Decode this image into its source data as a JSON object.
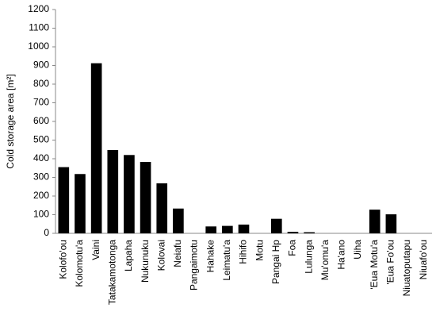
{
  "chart_data": {
    "type": "bar",
    "y_label": "Cold storage area [m²]",
    "categories": [
      "Kolofo'ou",
      "Kolomotu'a",
      "Vaini",
      "Tatakamotonga",
      "Lapaha",
      "Nukunuku",
      "Kolovai",
      "Neiafu",
      "Pangaimotu",
      "Hahake",
      "Leimatu'a",
      "Hihifo",
      "Motu",
      "Pangai Hp",
      "Foa",
      "Lulunga",
      "Mu'omu'a",
      "Ha'ano",
      "Uiha",
      "'Eua Motu'a",
      "'Eua Fo'ou",
      "Niuatoputapu",
      "Niuafo'ou"
    ],
    "values": [
      355,
      318,
      912,
      447,
      420,
      383,
      268,
      133,
      0,
      37,
      40,
      47,
      0,
      78,
      8,
      6,
      0,
      0,
      0,
      127,
      102,
      0,
      0
    ],
    "color": "#000000",
    "ylim": [
      0,
      1200
    ],
    "yticks": [
      0,
      100,
      200,
      300,
      400,
      500,
      600,
      700,
      800,
      900,
      1000,
      1100,
      1200
    ],
    "grid": false
  }
}
